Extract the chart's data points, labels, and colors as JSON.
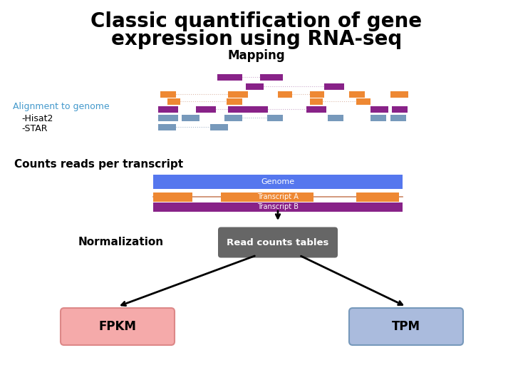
{
  "title_line1": "Classic quantification of gene",
  "title_line2": "expression using RNA-seq",
  "title_fontsize": 20,
  "background_color": "#ffffff",
  "mapping_label": "Mapping",
  "mapping_fontsize": 12,
  "alignment_label": "Alignment to genome",
  "alignment_label_color": "#4499cc",
  "hisat_label": "-Hisat2",
  "star_label": "-STAR",
  "counts_label": "Counts reads per transcript",
  "normalization_label": "Normalization",
  "genome_label": "Genome",
  "transcriptA_label": "Transcript A",
  "transcriptB_label": "Transcript B",
  "read_counts_label": "Read counts tables",
  "fpkm_label": "FPKM",
  "tpm_label": "TPM",
  "genome_color": "#5577ee",
  "transcriptA_line_color": "#cc8866",
  "transcriptA_exon_color": "#ee8833",
  "transcriptB_color": "#882288",
  "read_counts_box_color_top": "#888888",
  "read_counts_box_color_bot": "#444444",
  "fpkm_box_color": "#f5aaaa",
  "tpm_box_color": "#aabbdd",
  "purple_read_color": "#882288",
  "orange_read_color": "#ee8833",
  "blue_read_color": "#7799bb",
  "arrow_color": "#000000"
}
